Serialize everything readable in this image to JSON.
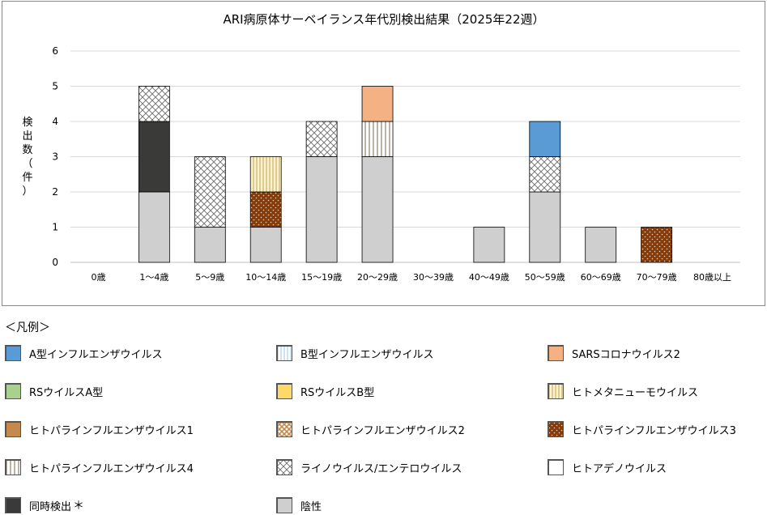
{
  "chart_data": {
    "type": "bar",
    "stacked": true,
    "title": "ARI病原体サーベイランス年代別検出結果（2025年22週）",
    "ylabel_chars": [
      "検",
      "出",
      "数",
      "（",
      "件",
      "）"
    ],
    "ylim": [
      0,
      6
    ],
    "yticks": [
      0,
      1,
      2,
      3,
      4,
      5,
      6
    ],
    "grid": true,
    "categories": [
      "0歳",
      "1～4歳",
      "5～9歳",
      "10～14歳",
      "15～19歳",
      "20～29歳",
      "30～39歳",
      "40～49歳",
      "50～59歳",
      "60～69歳",
      "70～79歳",
      "80歳以上"
    ],
    "series": [
      {
        "name": "陰性",
        "key": "negative",
        "values": [
          0,
          2,
          1,
          1,
          3,
          3,
          0,
          1,
          2,
          1,
          0,
          0
        ]
      },
      {
        "name": "同時検出",
        "key": "codetect",
        "values": [
          0,
          2,
          0,
          0,
          0,
          0,
          0,
          0,
          0,
          0,
          0,
          0
        ]
      },
      {
        "name": "ヒトパラインフルエンザウイルス3",
        "key": "hpiv3",
        "values": [
          0,
          0,
          0,
          1,
          0,
          0,
          0,
          0,
          0,
          0,
          1,
          0
        ]
      },
      {
        "name": "ヒトパラインフルエンザウイルス4",
        "key": "hpiv4",
        "values": [
          0,
          0,
          0,
          0,
          0,
          1,
          0,
          0,
          0,
          0,
          0,
          0
        ]
      },
      {
        "name": "ライノウイルス/エンテロウイルス",
        "key": "rhino",
        "values": [
          0,
          1,
          2,
          0,
          1,
          0,
          0,
          0,
          1,
          0,
          0,
          0
        ]
      },
      {
        "name": "ヒトメタニューモウイルス",
        "key": "hmpv",
        "values": [
          0,
          0,
          0,
          1,
          0,
          0,
          0,
          0,
          0,
          0,
          0,
          0
        ]
      },
      {
        "name": "A型インフルエンザウイルス",
        "key": "fluA",
        "values": [
          0,
          0,
          0,
          0,
          0,
          0,
          0,
          0,
          1,
          0,
          0,
          0
        ]
      },
      {
        "name": "SARSコロナウイルス2",
        "key": "sars",
        "values": [
          0,
          0,
          0,
          0,
          0,
          1,
          0,
          0,
          0,
          0,
          0,
          0
        ]
      }
    ]
  },
  "legend": {
    "heading": "＜凡例＞",
    "footnote_mark": "＊",
    "items": [
      {
        "label": "A型インフルエンザウイルス",
        "key": "fluA",
        "color": "#5b9bd5"
      },
      {
        "label": "B型インフルエンザウイルス",
        "key": "fluB",
        "color": "#ddebf7"
      },
      {
        "label": "SARSコロナウイルス2",
        "key": "sars",
        "color": "#f4b183"
      },
      {
        "label": "RSウイルスA型",
        "key": "rsvA",
        "color": "#a9d18e"
      },
      {
        "label": "RSウイルスB型",
        "key": "rsvB",
        "color": "#ffd966"
      },
      {
        "label": "ヒトメタニューモウイルス",
        "key": "hmpv",
        "color": "#fff2cc"
      },
      {
        "label": "ヒトパラインフルエンザウイルス1",
        "key": "hpiv1",
        "color": "#c5894d"
      },
      {
        "label": "ヒトパラインフルエンザウイルス2",
        "key": "hpiv2",
        "color": "#f8cbad"
      },
      {
        "label": "ヒトパラインフルエンザウイルス3",
        "key": "hpiv3",
        "color": "#843c0c"
      },
      {
        "label": "ヒトパラインフルエンザウイルス4",
        "key": "hpiv4",
        "color": "#ffffff"
      },
      {
        "label": "ライノウイルス/エンテロウイルス",
        "key": "rhino",
        "color": "#ffffff"
      },
      {
        "label": "ヒトアデノウイルス",
        "key": "adeno",
        "color": "#ffffff"
      },
      {
        "label": "同時検出",
        "key": "codetect",
        "color": "#3a3a38"
      },
      {
        "label": "陰性",
        "key": "negative",
        "color": "#cfcfcf"
      }
    ]
  }
}
